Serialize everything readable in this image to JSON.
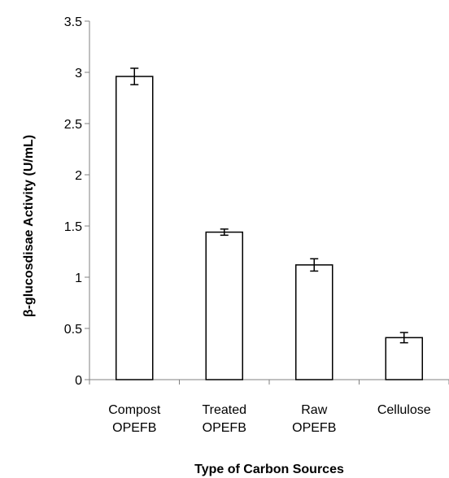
{
  "chart_data": {
    "type": "bar",
    "title": "",
    "xlabel": "Type of Carbon Sources",
    "ylabel": "β-glucosdisae Activity (U/mL)",
    "categories": [
      [
        "Compost",
        "OPEFB"
      ],
      [
        "Treated",
        "OPEFB"
      ],
      [
        "Raw",
        "OPEFB"
      ],
      [
        "Cellulose"
      ]
    ],
    "values": [
      2.96,
      1.44,
      1.12,
      0.41
    ],
    "errors": [
      0.08,
      0.03,
      0.06,
      0.05
    ],
    "ylim": [
      0,
      3.5
    ],
    "yticks": [
      "0",
      "0.5",
      "1",
      "1.5",
      "2",
      "2.5",
      "3",
      "3.5"
    ],
    "grid": false,
    "legend": "none",
    "colors": {
      "bar_fill": "#ffffff",
      "bar_stroke": "#000000",
      "axis": "#808080",
      "text": "#000000"
    }
  }
}
